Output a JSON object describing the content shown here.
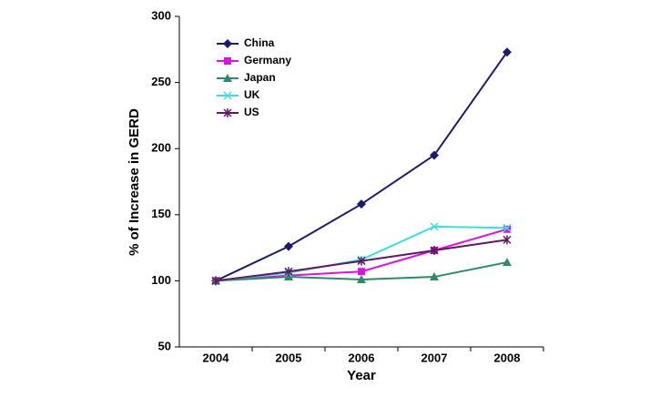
{
  "chart_data": {
    "type": "line",
    "x_label": "Year",
    "y_label": "% of Increase in GERD",
    "categories": [
      "2004",
      "2005",
      "2006",
      "2007",
      "2008"
    ],
    "series": [
      {
        "name": "China",
        "color": "#1b1b6b",
        "marker": "diamond",
        "values": [
          100,
          126,
          158,
          195,
          273
        ]
      },
      {
        "name": "Germany",
        "color": "#e010e0",
        "marker": "square",
        "values": [
          100,
          104,
          107,
          123,
          139
        ]
      },
      {
        "name": "Japan",
        "color": "#2f8a6c",
        "marker": "triangle",
        "values": [
          100,
          103,
          101,
          103,
          114
        ]
      },
      {
        "name": "UK",
        "color": "#3cdede",
        "marker": "x",
        "values": [
          100,
          106,
          116,
          141,
          140
        ]
      },
      {
        "name": "US",
        "color": "#5e1a5e",
        "marker": "asterisk",
        "values": [
          100,
          107,
          115,
          123,
          131
        ]
      }
    ],
    "ylim": [
      50,
      300
    ],
    "yticks": [
      50,
      100,
      150,
      200,
      250,
      300
    ],
    "grid": false,
    "legend": "upper left"
  }
}
